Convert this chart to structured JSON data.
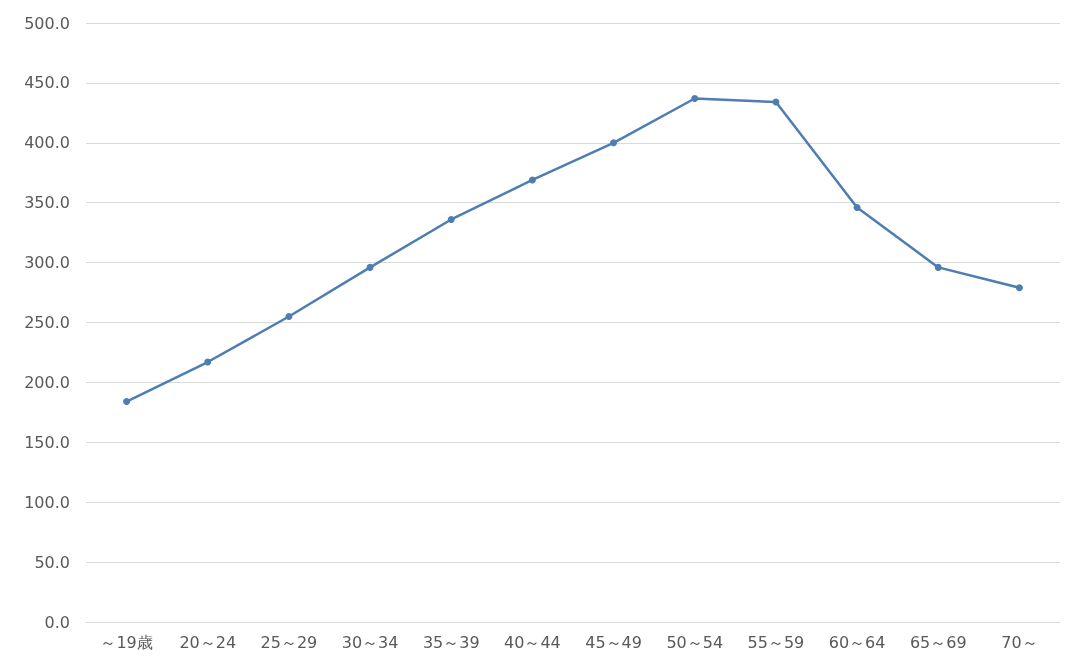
{
  "chart_data": {
    "type": "line",
    "categories": [
      "～19歳",
      "20～24",
      "25～29",
      "30～34",
      "35～39",
      "40～44",
      "45～49",
      "50～54",
      "55～59",
      "60～64",
      "65～69",
      "70～"
    ],
    "series": [
      {
        "color": "#4e7db1",
        "values": [
          184,
          217,
          255,
          296,
          336,
          369,
          400,
          437,
          434,
          346,
          296,
          279
        ]
      }
    ],
    "ylim": [
      0,
      500
    ],
    "yticks": [
      {
        "value": 0,
        "label": "0.0"
      },
      {
        "value": 50,
        "label": "50.0"
      },
      {
        "value": 100,
        "label": "100.0"
      },
      {
        "value": 150,
        "label": "150.0"
      },
      {
        "value": 200,
        "label": "200.0"
      },
      {
        "value": 250,
        "label": "250.0"
      },
      {
        "value": 300,
        "label": "300.0"
      },
      {
        "value": 350,
        "label": "350.0"
      },
      {
        "value": 400,
        "label": "400.0"
      },
      {
        "value": 450,
        "label": "450.0"
      },
      {
        "value": 500,
        "label": "500.0"
      }
    ],
    "grid": "y",
    "marker": "circle",
    "line_style": "solid"
  }
}
